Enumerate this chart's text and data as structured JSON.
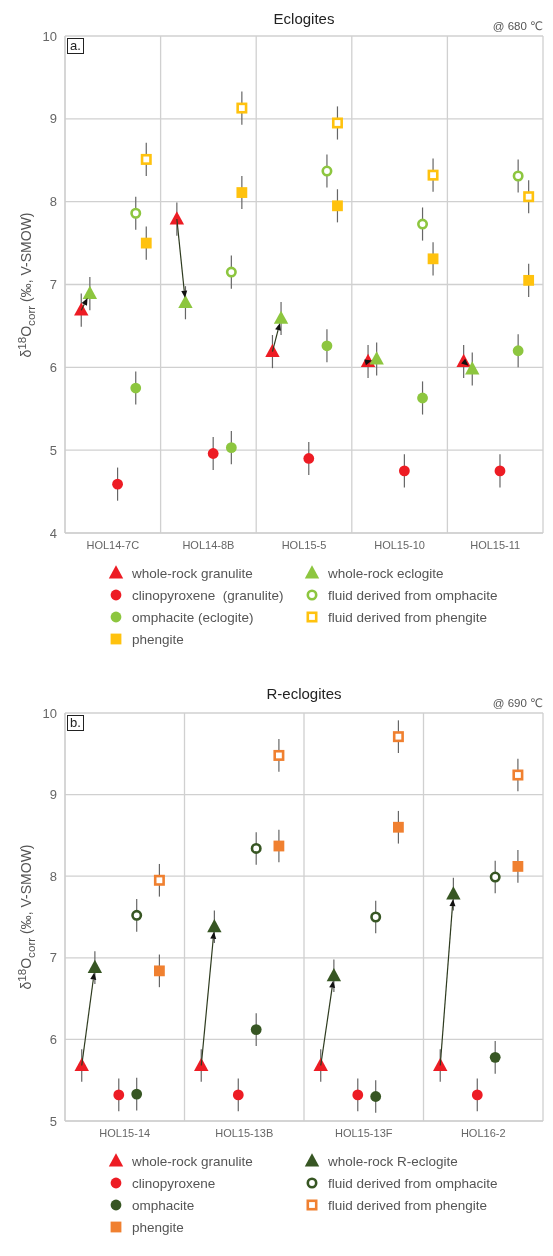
{
  "chart_data": [
    {
      "type": "scatter",
      "title": "Eclogites",
      "ylabel": "δ$^{18}$O$_{corr}$ (‰, V-SMOW)",
      "annotations": [
        "@ 680 ℃",
        "a."
      ],
      "categories": [
        "HOL14-7C",
        "HOL14-8B",
        "HOL15-5",
        "HOL15-10",
        "HOL15-11"
      ],
      "ylim": [
        4,
        10
      ],
      "yticks": [
        4,
        5,
        6,
        7,
        8,
        9,
        10
      ],
      "grid": true,
      "legend": "bottom",
      "series": [
        {
          "name": "whole-rock granulite",
          "color": "#ed1c24",
          "marker": "triangle",
          "values": [
            6.69,
            7.79,
            6.19,
            6.07,
            6.07
          ],
          "errors": [
            0.2,
            0.2,
            0.2,
            0.2,
            0.2
          ]
        },
        {
          "name": "whole-rock eclogite",
          "color": "#8dc63f",
          "marker": "triangle",
          "values": [
            6.89,
            6.78,
            6.59,
            6.1,
            5.98
          ],
          "errors": [
            0.2,
            0.2,
            0.2,
            0.2,
            0.2
          ]
        },
        {
          "name": "clinopyroxene  (granulite)",
          "color": "#ed1c24",
          "marker": "circle",
          "values": [
            4.59,
            4.96,
            4.9,
            4.75,
            4.75
          ],
          "errors": [
            0.2,
            0.2,
            0.2,
            0.2,
            0.2
          ]
        },
        {
          "name": "fluid derived from omphacite",
          "color": "#8dc63f",
          "marker": "circle",
          "values": [
            7.86,
            7.15,
            8.37,
            7.73,
            8.31
          ],
          "errors": [
            0.2,
            0.2,
            0.2,
            0.2,
            0.2
          ]
        },
        {
          "name": "omphacite (eclogite)",
          "color": "#8dc63f",
          "marker": "circle",
          "values": [
            5.75,
            5.03,
            6.26,
            5.63,
            6.2
          ],
          "errors": [
            0.2,
            0.2,
            0.2,
            0.2,
            0.2
          ]
        },
        {
          "name": "fluid derived from phengite",
          "color": "#ffc20e",
          "marker": "square",
          "values": [
            8.51,
            9.13,
            8.95,
            8.32,
            8.06
          ],
          "errors": [
            0.2,
            0.2,
            0.2,
            0.2,
            0.2
          ]
        },
        {
          "name": "phengite",
          "color": "#ffc20e",
          "marker": "square",
          "values": [
            7.5,
            8.11,
            7.95,
            7.31,
            7.05
          ],
          "errors": [
            0.2,
            0.2,
            0.2,
            0.2,
            0.2
          ]
        }
      ]
    },
    {
      "type": "scatter",
      "title": "R-eclogites",
      "ylabel": "δ$^{18}$O$_{corr}$ (‰, V-SMOW)",
      "annotations": [
        "@ 690 ℃",
        "b."
      ],
      "categories": [
        "HOL15-14",
        "HOL15-13B",
        "HOL15-13F",
        "HOL16-2"
      ],
      "ylim": [
        5,
        10
      ],
      "yticks": [
        5,
        6,
        7,
        8,
        9,
        10
      ],
      "grid": true,
      "legend": "bottom",
      "series": [
        {
          "name": "whole-rock granulite",
          "color": "#ed1c24",
          "marker": "triangle",
          "values": [
            5.68,
            5.68,
            5.68,
            5.68
          ],
          "errors": [
            0.2,
            0.2,
            0.2,
            0.2
          ]
        },
        {
          "name": "whole-rock R-eclogite",
          "color": "#375623",
          "marker": "triangle",
          "values": [
            6.88,
            7.38,
            6.78,
            7.78
          ],
          "errors": [
            0.2,
            0.2,
            0.2,
            0.2
          ]
        },
        {
          "name": "clinopyroxene",
          "color": "#ed1c24",
          "marker": "circle",
          "values": [
            5.32,
            5.32,
            5.32,
            5.32
          ],
          "errors": [
            0.2,
            0.2,
            0.2,
            0.2
          ]
        },
        {
          "name": "fluid derived from omphacite",
          "color": "#375623",
          "marker": "circle",
          "values": [
            7.52,
            8.34,
            7.5,
            7.99
          ],
          "errors": [
            0.2,
            0.2,
            0.2,
            0.2
          ]
        },
        {
          "name": "omphacite",
          "color": "#375623",
          "marker": "circle",
          "values": [
            5.33,
            6.12,
            5.3,
            5.78
          ],
          "errors": [
            0.2,
            0.2,
            0.2,
            0.2
          ]
        },
        {
          "name": "fluid derived from phengite",
          "color": "#f08030",
          "marker": "square",
          "values": [
            7.95,
            9.48,
            9.71,
            9.24
          ],
          "errors": [
            0.2,
            0.2,
            0.2,
            0.2
          ]
        },
        {
          "name": "phengite",
          "color": "#f08030",
          "marker": "square",
          "values": [
            6.84,
            8.37,
            8.6,
            8.12
          ],
          "errors": [
            0.2,
            0.2,
            0.2,
            0.2
          ]
        }
      ]
    }
  ]
}
